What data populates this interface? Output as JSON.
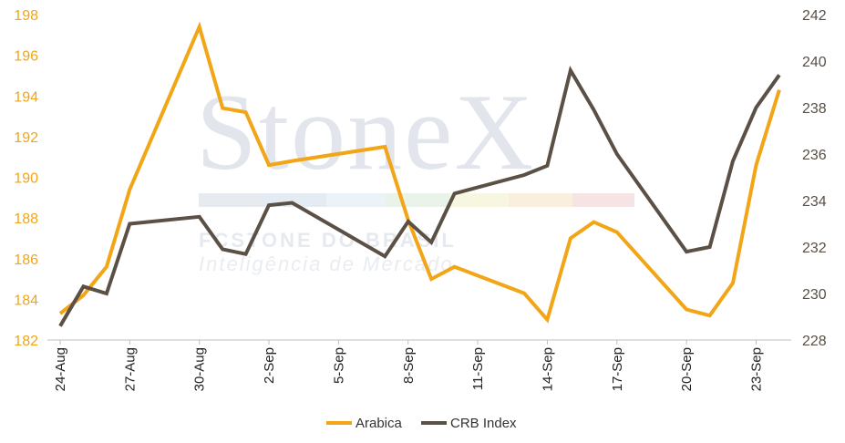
{
  "watermark": {
    "brand": "StoneX",
    "line1": "FCSTONE DO BRASIL",
    "line2": "Inteligência de Mercado"
  },
  "chart_data": {
    "type": "line",
    "title": "",
    "xlabel": "",
    "ylabel": "",
    "y2label": "",
    "grid": false,
    "legend_position": "bottom",
    "x_tick_labels": [
      "24-Aug",
      "27-Aug",
      "30-Aug",
      "2-Sep",
      "5-Sep",
      "8-Sep",
      "11-Sep",
      "14-Sep",
      "17-Sep",
      "20-Sep",
      "23-Sep"
    ],
    "x_tick_positions": [
      0,
      3,
      6,
      9,
      12,
      15,
      18,
      21,
      24,
      27,
      30
    ],
    "x": [
      "24-Aug",
      "25-Aug",
      "26-Aug",
      "27-Aug",
      "30-Aug",
      "31-Aug",
      "1-Sep",
      "2-Sep",
      "3-Sep",
      "7-Sep",
      "8-Sep",
      "9-Sep",
      "10-Sep",
      "13-Sep",
      "14-Sep",
      "15-Sep",
      "16-Sep",
      "17-Sep",
      "20-Sep",
      "21-Sep",
      "22-Sep",
      "23-Sep",
      "24-Sep"
    ],
    "x_index": [
      0,
      1,
      2,
      3,
      6,
      7,
      8,
      9,
      10,
      14,
      15,
      16,
      17,
      20,
      21,
      22,
      23,
      24,
      27,
      28,
      29,
      30,
      31
    ],
    "ylim_left": [
      182,
      198
    ],
    "yticks_left": [
      182,
      184,
      186,
      188,
      190,
      192,
      194,
      196,
      198
    ],
    "ylim_right": [
      228,
      242
    ],
    "yticks_right": [
      228,
      230,
      232,
      234,
      236,
      238,
      240,
      242
    ],
    "series": [
      {
        "name": "Arabica",
        "axis": "left",
        "color": "#F2A516",
        "values": [
          183.3,
          184.2,
          185.6,
          189.4,
          197.4,
          193.4,
          193.2,
          190.6,
          190.8,
          191.5,
          187.9,
          185.0,
          185.6,
          184.3,
          183.0,
          187.0,
          187.8,
          187.3,
          183.5,
          183.2,
          184.8,
          190.6,
          194.3
        ]
      },
      {
        "name": "CRB Index",
        "axis": "right",
        "color": "#5A5046",
        "values": [
          228.6,
          230.3,
          230.0,
          233.0,
          233.3,
          231.9,
          231.7,
          233.8,
          233.9,
          231.6,
          233.1,
          232.2,
          234.3,
          235.1,
          235.5,
          239.6,
          237.9,
          236.0,
          231.8,
          232.0,
          235.7,
          238.0,
          239.4
        ]
      }
    ]
  }
}
